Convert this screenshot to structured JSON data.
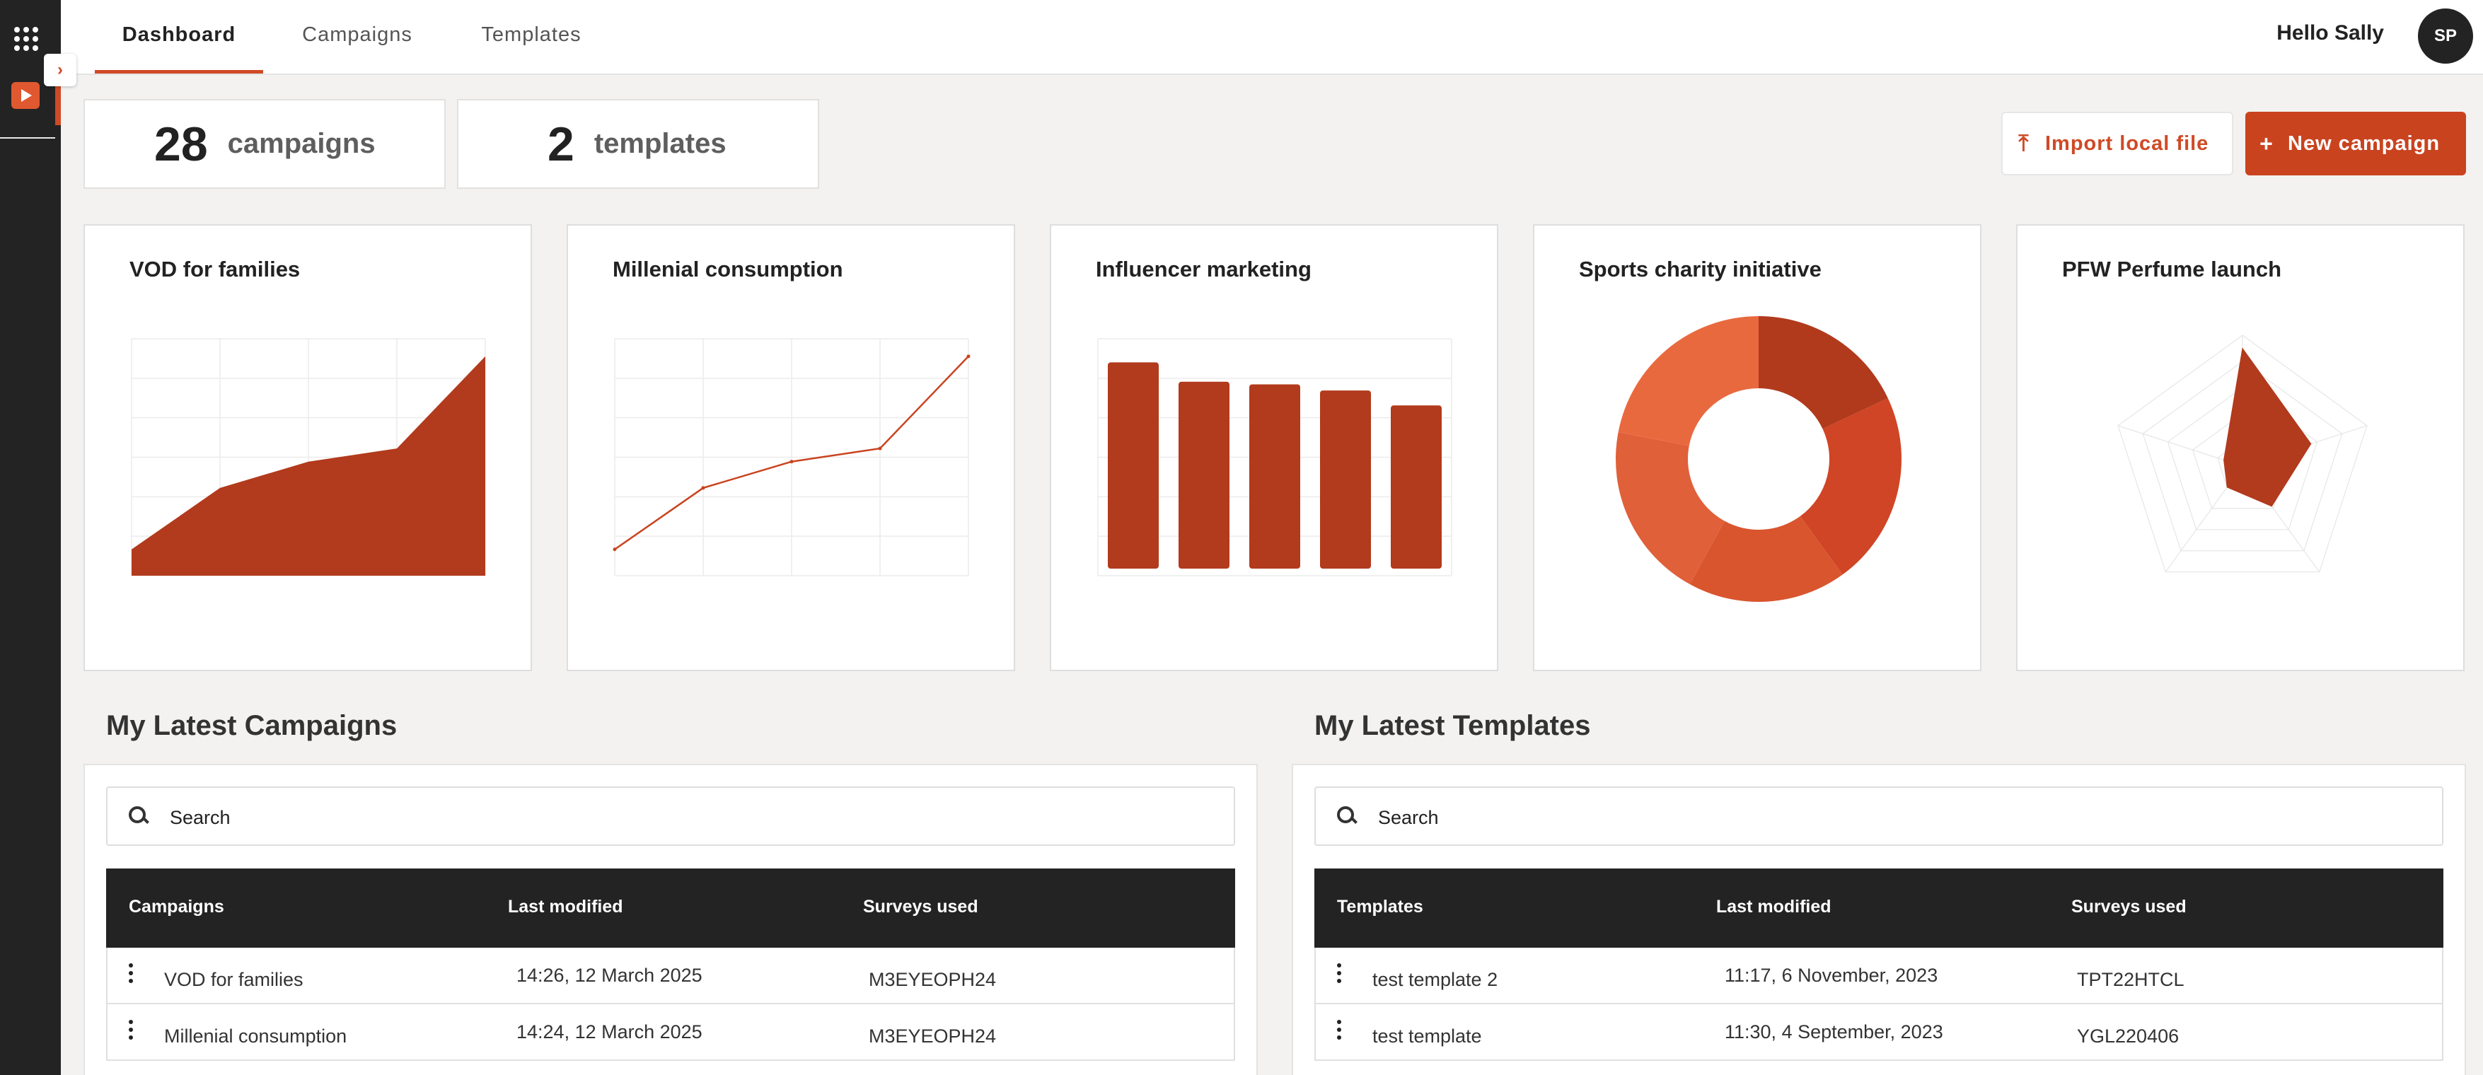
{
  "nav": {
    "tabs": [
      "Dashboard",
      "Campaigns",
      "Templates"
    ],
    "active_tab": "Dashboard",
    "greeting": "Hello Sally",
    "avatar_initials": "SP",
    "expand_icon": "chevron-right-icon",
    "apps_icon": "grid-apps-icon",
    "app_icon": "video-play-icon"
  },
  "stats": {
    "campaigns": {
      "count": "28",
      "label": "campaigns"
    },
    "templates": {
      "count": "2",
      "label": "templates"
    }
  },
  "actions": {
    "import_label": "Import local file",
    "import_icon": "upload-icon",
    "new_label": "New campaign",
    "new_icon": "plus-icon"
  },
  "colors": {
    "accent": "#c9431f",
    "rail": "#232323",
    "donut": [
      "#b13a1d",
      "#cf4525",
      "#d9552e",
      "#e0603a",
      "#e9693f"
    ]
  },
  "chart_data": [
    {
      "type": "area",
      "title": "VOD for families",
      "x": [
        0,
        1,
        2,
        3,
        4
      ],
      "values": [
        3,
        10,
        13,
        14.5,
        25
      ],
      "ylim": [
        0,
        27
      ],
      "grid": true
    },
    {
      "type": "line",
      "title": "Millenial consumption",
      "x": [
        0,
        1,
        2,
        3,
        4
      ],
      "values": [
        3,
        10,
        13,
        14.5,
        25
      ],
      "ylim": [
        0,
        27
      ],
      "grid": true
    },
    {
      "type": "bar",
      "title": "Influencer marketing",
      "categories": [
        "1",
        "2",
        "3",
        "4",
        "5"
      ],
      "values": [
        23.5,
        21.3,
        21,
        20.3,
        18.6
      ],
      "ylim": [
        0,
        27
      ],
      "grid": true
    },
    {
      "type": "pie",
      "title": "Sports charity initiative",
      "values": [
        18,
        22,
        18,
        20,
        22
      ],
      "donut": true
    },
    {
      "type": "radar",
      "title": "PFW Perfume launch",
      "axes": 5,
      "values": [
        0.9,
        0.55,
        0.38,
        0.2,
        0.15
      ],
      "grid": true
    }
  ],
  "campaigns_section": {
    "title": "My Latest Campaigns",
    "search_placeholder": "Search",
    "columns": [
      "Campaigns",
      "Last modified",
      "Surveys used"
    ],
    "rows": [
      {
        "name": "VOD for families",
        "modified": "14:26, 12 March 2025",
        "surveys": "M3EYEOPH24"
      },
      {
        "name": "Millenial consumption",
        "modified": "14:24, 12 March 2025",
        "surveys": "M3EYEOPH24"
      }
    ]
  },
  "templates_section": {
    "title": "My Latest Templates",
    "search_placeholder": "Search",
    "columns": [
      "Templates",
      "Last modified",
      "Surveys used"
    ],
    "rows": [
      {
        "name": "test template 2",
        "modified": "11:17, 6 November, 2023",
        "surveys": "TPT22HTCL"
      },
      {
        "name": "test template",
        "modified": "11:30, 4 September, 2023",
        "surveys": "YGL220406"
      }
    ]
  }
}
